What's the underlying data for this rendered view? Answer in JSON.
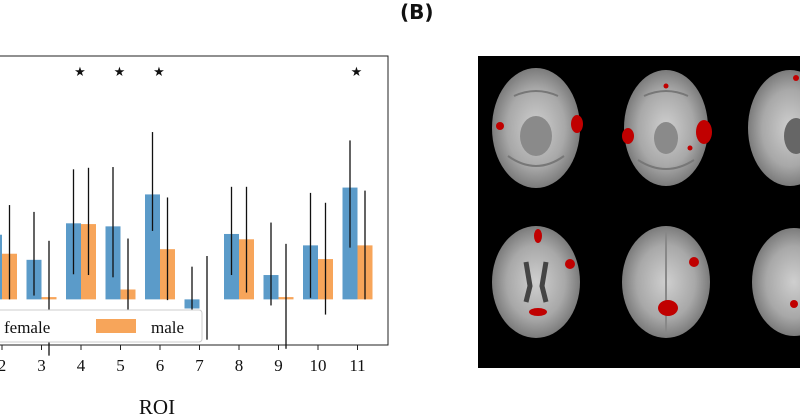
{
  "panel_b": {
    "label": "(B)"
  },
  "chart_data": {
    "type": "bar",
    "title": "",
    "xlabel": "ROI",
    "ylabel": "",
    "categories": [
      "2",
      "3",
      "4",
      "5",
      "6",
      "7",
      "8",
      "9",
      "10",
      "11"
    ],
    "ylim": [
      -0.6,
      3.2
    ],
    "series": [
      {
        "name": "female",
        "color": "#5b9bc9",
        "values": [
          0.85,
          0.52,
          1.0,
          0.96,
          1.38,
          -0.12,
          0.86,
          0.32,
          0.71,
          1.47
        ],
        "err_low": [
          0.5,
          0.05,
          0.33,
          0.29,
          0.9,
          -0.42,
          0.32,
          -0.08,
          0.02,
          0.68
        ],
        "err_high": [
          1.24,
          1.15,
          1.71,
          1.74,
          2.2,
          0.43,
          1.48,
          1.01,
          1.4,
          2.09
        ]
      },
      {
        "name": "male",
        "color": "#f7a55a",
        "values": [
          0.6,
          0.03,
          0.99,
          0.13,
          0.66,
          0.0,
          0.79,
          0.03,
          0.53,
          0.71
        ],
        "err_low": [
          0.0,
          -0.74,
          0.32,
          -0.52,
          -0.01,
          -0.53,
          0.09,
          -0.65,
          -0.2,
          0.0
        ],
        "err_high": [
          1.24,
          0.77,
          1.73,
          0.8,
          1.34,
          0.57,
          1.48,
          0.73,
          1.27,
          1.43
        ]
      }
    ],
    "significant_markers": [
      "4",
      "5",
      "6",
      "11"
    ],
    "marker_symbol": "★",
    "legend": {
      "position": "bottom-left",
      "entries": [
        "female",
        "male"
      ]
    }
  }
}
